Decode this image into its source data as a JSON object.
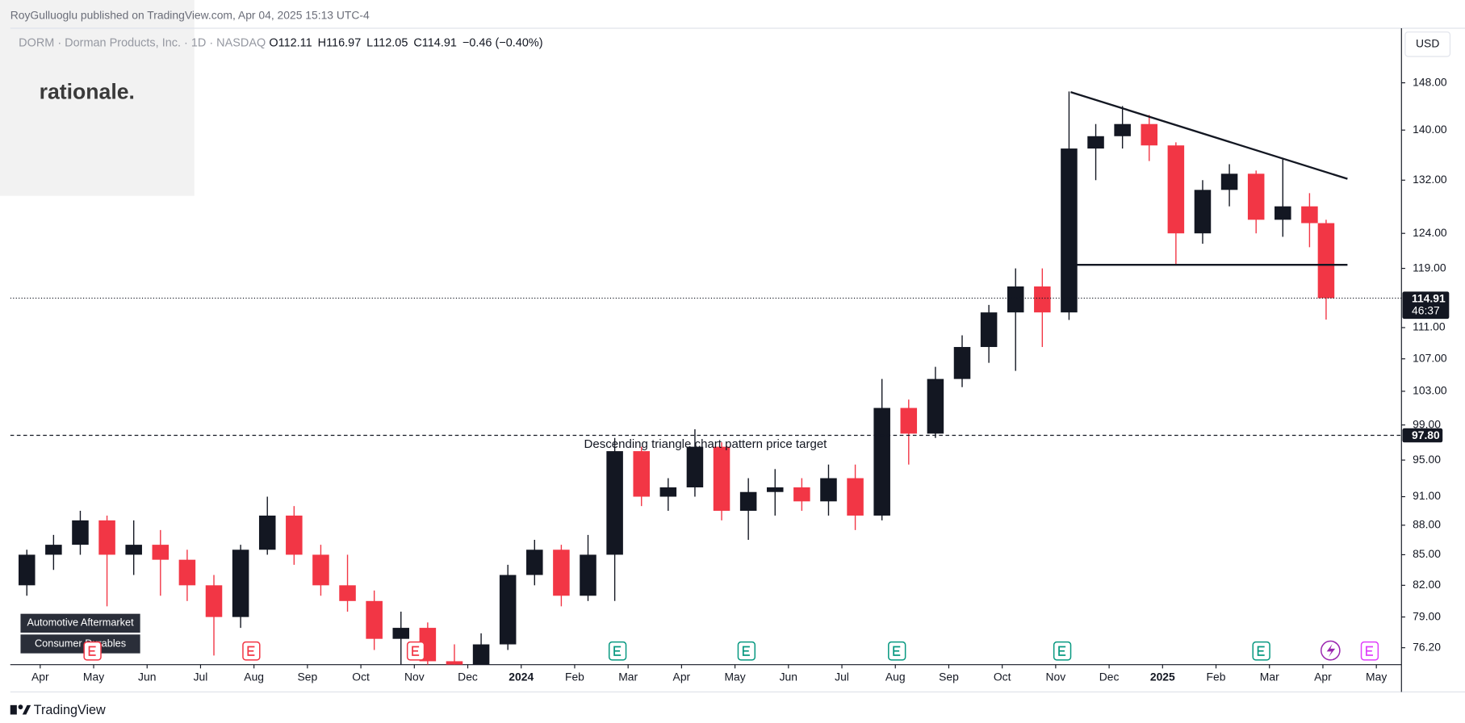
{
  "header": "RoyGulluoglu published on TradingView.com, Apr 04, 2025 15:13 UTC-4",
  "watermark": "rationale.",
  "currency": "USD",
  "footer": "TradingView",
  "chart_data": {
    "type": "candlestick",
    "symbol": "DORM · Dorman Products, Inc. · 1D · NASDAQ",
    "ohlc": [
      "O112.11",
      "H116.97",
      "L112.05",
      "C114.91",
      "−0.46 (−0.40%)"
    ],
    "tags": [
      "Automotive Aftermarket",
      "Consumer Durables"
    ],
    "log_scale": true,
    "grid": false,
    "colors": {
      "up": "#131722",
      "down": "#f23645"
    },
    "x": [
      -0.25,
      0.25,
      0.75,
      1.25,
      1.75,
      2.25,
      2.75,
      3.25,
      3.75,
      4.25,
      4.75,
      5.25,
      5.75,
      6.25,
      6.75,
      7.25,
      7.75,
      8.25,
      8.75,
      9.25,
      9.75,
      10.25,
      10.75,
      11.25,
      11.75,
      12.25,
      12.75,
      13.25,
      13.75,
      14.25,
      14.75,
      15.25,
      15.75,
      16.25,
      16.75,
      17.25,
      17.75,
      18.25,
      18.75,
      19.25,
      19.75,
      20.25,
      20.75,
      21.25,
      21.75,
      22.25,
      22.75,
      23.25,
      23.75,
      24.06
    ],
    "open": [
      82,
      85,
      86,
      88.5,
      85,
      86,
      84.5,
      82,
      79,
      85.5,
      89,
      85,
      82,
      80.5,
      77,
      78,
      75,
      73.5,
      76.5,
      83,
      85.5,
      81,
      85,
      96,
      91,
      92,
      96.5,
      89.5,
      91.5,
      92,
      90.5,
      93,
      89,
      101,
      98,
      104.5,
      108.5,
      113,
      116.5,
      113,
      137,
      139,
      141,
      137.5,
      124,
      130.5,
      133,
      126,
      128,
      125.5
    ],
    "high": [
      85.5,
      87,
      89.5,
      89,
      88.5,
      87.5,
      85.5,
      83,
      86,
      91,
      90,
      86,
      85,
      81.5,
      79.5,
      78.5,
      76.5,
      77.5,
      84,
      86.5,
      86,
      87,
      97.5,
      96.5,
      93,
      98.5,
      97,
      93,
      94,
      93,
      94.5,
      94.5,
      104.5,
      102,
      106,
      110,
      114,
      119,
      119,
      146.5,
      141,
      144,
      142.5,
      138,
      132,
      134.5,
      133.5,
      135.5,
      130,
      126
    ],
    "low": [
      81,
      83.5,
      85,
      80,
      83,
      81,
      80.5,
      75.5,
      78,
      85,
      84,
      81,
      79.5,
      76,
      74,
      74,
      72,
      72.5,
      76,
      82,
      80,
      80.5,
      80.5,
      90,
      89.5,
      91,
      88.5,
      86.5,
      89,
      89.5,
      89,
      87.5,
      88.5,
      94.5,
      97.5,
      103.5,
      106.5,
      105.5,
      108.5,
      112,
      132,
      137,
      135,
      119.5,
      122.5,
      128,
      124,
      123.5,
      122,
      112.05
    ],
    "close": [
      85,
      86,
      88.5,
      85,
      86,
      84.5,
      82,
      79,
      85.5,
      89,
      85,
      82,
      80.5,
      77,
      78,
      75,
      73.5,
      76.5,
      83,
      85.5,
      81,
      85,
      96,
      91,
      92,
      96.5,
      89.5,
      91.5,
      92,
      90.5,
      93,
      89,
      101,
      98,
      104.5,
      108.5,
      113,
      116.5,
      113,
      137,
      139,
      141,
      137.5,
      124,
      130.5,
      133,
      126,
      128,
      125.5,
      114.91
    ],
    "xlim": [
      -0.56,
      25.47
    ],
    "xticks": [
      {
        "value": 0,
        "label": "Apr"
      },
      {
        "value": 1,
        "label": "May"
      },
      {
        "value": 2,
        "label": "Jun"
      },
      {
        "value": 3,
        "label": "Jul"
      },
      {
        "value": 4,
        "label": "Aug"
      },
      {
        "value": 5,
        "label": "Sep"
      },
      {
        "value": 6,
        "label": "Oct"
      },
      {
        "value": 7,
        "label": "Nov"
      },
      {
        "value": 8,
        "label": "Dec"
      },
      {
        "value": 9,
        "label": "2024"
      },
      {
        "value": 10,
        "label": "Feb"
      },
      {
        "value": 11,
        "label": "Mar"
      },
      {
        "value": 12,
        "label": "Apr"
      },
      {
        "value": 13,
        "label": "May"
      },
      {
        "value": 14,
        "label": "Jun"
      },
      {
        "value": 15,
        "label": "Jul"
      },
      {
        "value": 16,
        "label": "Aug"
      },
      {
        "value": 17,
        "label": "Sep"
      },
      {
        "value": 18,
        "label": "Oct"
      },
      {
        "value": 19,
        "label": "Nov"
      },
      {
        "value": 20,
        "label": "Dec"
      },
      {
        "value": 21,
        "label": "2025"
      },
      {
        "value": 22,
        "label": "Feb"
      },
      {
        "value": 23,
        "label": "Mar"
      },
      {
        "value": 24,
        "label": "Apr"
      },
      {
        "value": 25,
        "label": "May"
      }
    ],
    "ylim": [
      74.7,
      157.8
    ],
    "yticks": [
      {
        "value": 148,
        "label": "148.00"
      },
      {
        "value": 140,
        "label": "140.00"
      },
      {
        "value": 132,
        "label": "132.00"
      },
      {
        "value": 124,
        "label": "124.00"
      },
      {
        "value": 119,
        "label": "119.00"
      },
      {
        "value": 111,
        "label": "111.00"
      },
      {
        "value": 107,
        "label": "107.00"
      },
      {
        "value": 103,
        "label": "103.00"
      },
      {
        "value": 99,
        "label": "99.00"
      },
      {
        "value": 95,
        "label": "95.00"
      },
      {
        "value": 91,
        "label": "91.00"
      },
      {
        "value": 88,
        "label": "88.00"
      },
      {
        "value": 85,
        "label": "85.00"
      },
      {
        "value": 82,
        "label": "82.00"
      },
      {
        "value": 79,
        "label": "79.00"
      },
      {
        "value": 76.2,
        "label": "76.20"
      }
    ],
    "last_price": {
      "value": 114.91,
      "label": "114.91"
    },
    "countdown": "46:37",
    "target": {
      "value": 97.8,
      "label": "97.80",
      "text": "Descending triangle chart pattern price target"
    },
    "trendlines": [
      {
        "x": [
          19.28,
          24.46
        ],
        "y": [
          146.4,
          132.2
        ]
      },
      {
        "x": [
          19.4,
          24.46
        ],
        "y": [
          119.5,
          119.5
        ]
      }
    ]
  }
}
